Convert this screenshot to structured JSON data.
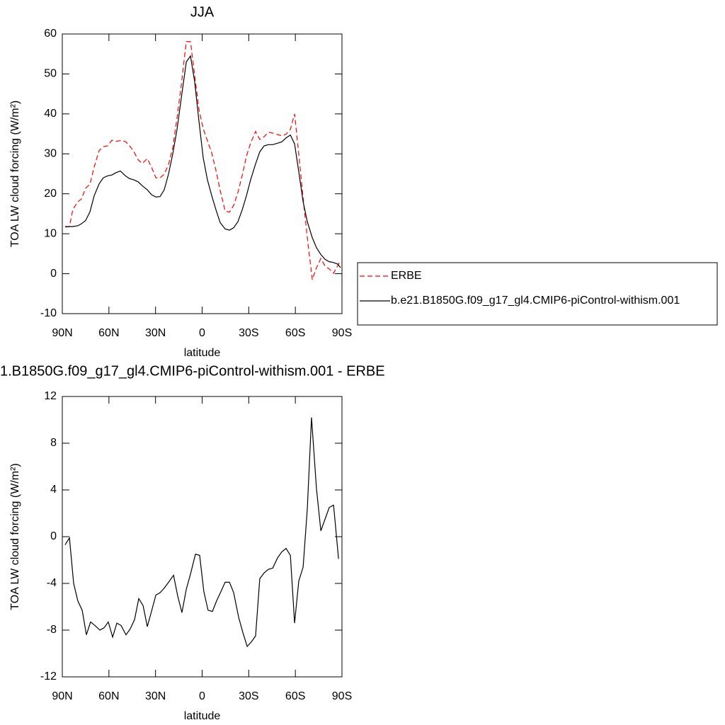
{
  "chart_data": [
    {
      "type": "line",
      "title": "JJA",
      "xlabel": "latitude",
      "ylabel": "TOA LW cloud forcing (W/m²)",
      "x": [
        88.2,
        85.4,
        83.2,
        80,
        77.7,
        75,
        72.2,
        69.5,
        66.3,
        63.6,
        60.8,
        58.1,
        55.4,
        52.6,
        49.4,
        46.7,
        44,
        41.2,
        38.5,
        35.3,
        32.6,
        29.8,
        27.1,
        24.4,
        21.6,
        18.9,
        16.2,
        13.4,
        10.2,
        7.5,
        4.8,
        2,
        -0.7,
        -3.4,
        -6.2,
        -8.9,
        -11.6,
        -14.8,
        -17.6,
        -20.3,
        -23,
        -25.8,
        -28.5,
        -31.2,
        -34.4,
        -37.1,
        -39.9,
        -42.6,
        -45.4,
        -48.1,
        -51.3,
        -54,
        -56.8,
        -59.5,
        -62.2,
        -65,
        -67.7,
        -70.9,
        -73.6,
        -76.4,
        -79.1,
        -81.8,
        -84.6,
        -87.3,
        -89.1
      ],
      "series": [
        {
          "name": "ERBE",
          "color": "#ff0000",
          "line_style": "dashed",
          "values": [
            11.8,
            11.8,
            16.1,
            18,
            18.7,
            21.4,
            22.4,
            26.7,
            30.8,
            31.8,
            32,
            33.4,
            33.1,
            33.3,
            33.1,
            32,
            30.6,
            28.5,
            27.6,
            28.8,
            26.7,
            24,
            24,
            24.9,
            27.4,
            31.5,
            38.9,
            47.3,
            58.1,
            58.1,
            49.6,
            41,
            36.3,
            33.3,
            30.2,
            25.8,
            20.9,
            15.7,
            15.4,
            17.1,
            20.3,
            24.6,
            29.4,
            32.7,
            35.6,
            33.6,
            34.3,
            35.4,
            35.2,
            34.9,
            34.5,
            34.9,
            36.1,
            40,
            29.9,
            18.9,
            9,
            -1.5,
            1.5,
            3.8,
            1.9,
            1.2,
            0.1,
            2.1,
            3.3
          ]
        },
        {
          "name": "b.e21.B1850G.f09_g17_gl4.CMIP6-piControl-withism.001",
          "color": "#000000",
          "line_style": "solid",
          "values": [
            11.7,
            11.8,
            11.8,
            12,
            12.5,
            13.3,
            15.5,
            19.5,
            22.5,
            24,
            24.5,
            24.7,
            25.3,
            25.7,
            24.5,
            23.8,
            23.5,
            23,
            22,
            21,
            19.8,
            19.2,
            19.3,
            21,
            25,
            30,
            36,
            44,
            53,
            54.5,
            48,
            38,
            29,
            23.5,
            19.5,
            16,
            12.8,
            11.2,
            10.9,
            11.5,
            13,
            16,
            19.5,
            23.5,
            27.5,
            30.5,
            32,
            32.3,
            32.3,
            32.6,
            33,
            34,
            34.7,
            32.5,
            25.5,
            18,
            13,
            9,
            6.5,
            4.8,
            3.6,
            3,
            2.8,
            2.4,
            1.5
          ]
        }
      ],
      "xlim": [
        90,
        -90
      ],
      "xticks": [
        {
          "value": 90,
          "label": "90N"
        },
        {
          "value": 60,
          "label": "60N"
        },
        {
          "value": 30,
          "label": "30N"
        },
        0,
        {
          "value": -30,
          "label": "30S"
        },
        {
          "value": -60,
          "label": "60S"
        },
        {
          "value": -90,
          "label": "90S"
        }
      ],
      "ylim": [
        -10,
        60
      ],
      "yticks": [
        -10,
        0,
        10,
        20,
        30,
        40,
        50,
        60
      ],
      "legend": "right"
    },
    {
      "type": "line",
      "title": "1.B1850G.f09_g17_gl4.CMIP6-piControl-withism.001 - ERBE",
      "xlabel": "latitude",
      "ylabel": "TOA LW cloud forcing (W/m²)",
      "x": [
        88.2,
        85.4,
        82.7,
        80,
        77.2,
        74.5,
        71.8,
        69,
        65.8,
        63.1,
        60.4,
        57.6,
        54.9,
        52.2,
        49,
        46.3,
        43.5,
        40.8,
        38,
        35.3,
        32.6,
        29.8,
        27.1,
        24.4,
        21.6,
        18.4,
        15.7,
        13,
        10.2,
        7.5,
        4.3,
        1.6,
        -1.1,
        -3.8,
        -6.6,
        -9.3,
        -12.1,
        -14.8,
        -17.6,
        -20.3,
        -23.5,
        -26.2,
        -29,
        -31.7,
        -34.4,
        -37.1,
        -39.9,
        -42.6,
        -45.4,
        -48.6,
        -51.3,
        -54,
        -56.8,
        -59.5,
        -62.2,
        -65,
        -67.7,
        -70.4,
        -73.6,
        -76.4,
        -79.1,
        -81.8,
        -84.6,
        -87.8
      ],
      "values": [
        -0.7,
        -0.1,
        -4,
        -5.5,
        -6.3,
        -8.4,
        -7.3,
        -7.6,
        -8,
        -7.8,
        -7.3,
        -8.6,
        -7.4,
        -7.6,
        -8.4,
        -7.9,
        -7.1,
        -5.3,
        -5.9,
        -7.7,
        -6.4,
        -5,
        -4.8,
        -4.4,
        -3.9,
        -3.3,
        -5.1,
        -6.5,
        -4.5,
        -3.2,
        -1.5,
        -1.6,
        -4.7,
        -6.3,
        -6.4,
        -5.5,
        -4.7,
        -3.9,
        -3.9,
        -4.8,
        -6.9,
        -8.2,
        -9.4,
        -9,
        -8.5,
        -3.6,
        -3.1,
        -2.8,
        -2.7,
        -1.8,
        -1.3,
        -1,
        -1.6,
        -7.4,
        -3.8,
        -2.6,
        2.4,
        10.2,
        4.1,
        0.5,
        1.5,
        2.5,
        2.7,
        -1.9
      ],
      "color": "#000000",
      "xlim": [
        90,
        -90
      ],
      "xticks": [
        {
          "value": 90,
          "label": "90N"
        },
        {
          "value": 60,
          "label": "60N"
        },
        {
          "value": 30,
          "label": "30N"
        },
        0,
        {
          "value": -30,
          "label": "30S"
        },
        {
          "value": -60,
          "label": "60S"
        },
        {
          "value": -90,
          "label": "90S"
        }
      ],
      "ylim": [
        -12,
        12
      ],
      "yticks": [
        -12,
        -8,
        -4,
        0,
        4,
        8,
        12
      ]
    }
  ]
}
